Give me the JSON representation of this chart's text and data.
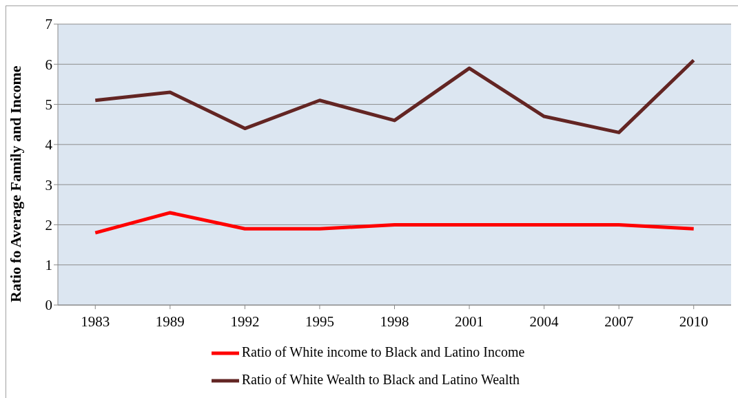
{
  "chart_data": {
    "type": "line",
    "ylabel": "Ratio fo Average Family and Income",
    "categories": [
      "1983",
      "1989",
      "1992",
      "1995",
      "1998",
      "2001",
      "2004",
      "2007",
      "2010"
    ],
    "series": [
      {
        "name": "Ratio of White income to Black and Latino Income",
        "color": "#ff0000",
        "values": [
          1.8,
          2.3,
          1.9,
          1.9,
          2.0,
          2.0,
          2.0,
          2.0,
          1.9
        ]
      },
      {
        "name": "Ratio of White Wealth to Black and Latino Wealth",
        "color": "#632523",
        "values": [
          5.1,
          5.3,
          4.4,
          5.1,
          4.6,
          5.9,
          4.7,
          4.3,
          6.1
        ]
      }
    ],
    "ylim": [
      0,
      7
    ],
    "yticks": [
      0,
      1,
      2,
      3,
      4,
      5,
      6,
      7
    ],
    "grid": "y",
    "legend": "bottom",
    "marker": "none",
    "line_style": "solid"
  }
}
